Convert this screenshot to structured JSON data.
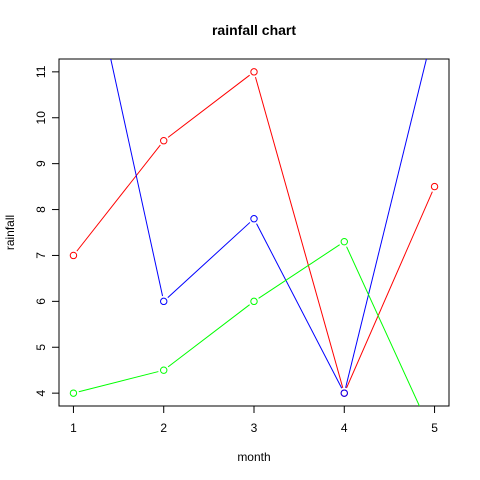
{
  "chart_data": {
    "type": "line",
    "title": "rainfall chart",
    "xlabel": "month",
    "ylabel": "rainfall",
    "x": [
      1,
      2,
      3,
      4,
      5
    ],
    "xticks": [
      "1",
      "2",
      "3",
      "4",
      "5"
    ],
    "yticks": [
      "4",
      "5",
      "6",
      "7",
      "8",
      "9",
      "10",
      "11"
    ],
    "xlim": [
      0.84,
      5.16
    ],
    "ylim": [
      3.72,
      11.28
    ],
    "grid": false,
    "legend": "none",
    "markers": "open-circle",
    "series": [
      {
        "color": "#ff0000",
        "values": [
          7,
          9.5,
          11,
          4,
          8.5
        ]
      },
      {
        "color": "#0000ff",
        "values": [
          15,
          6,
          7.8,
          4,
          12
        ]
      },
      {
        "color": "#00ff00",
        "values": [
          4,
          4.5,
          6,
          7.3,
          3
        ]
      }
    ]
  }
}
